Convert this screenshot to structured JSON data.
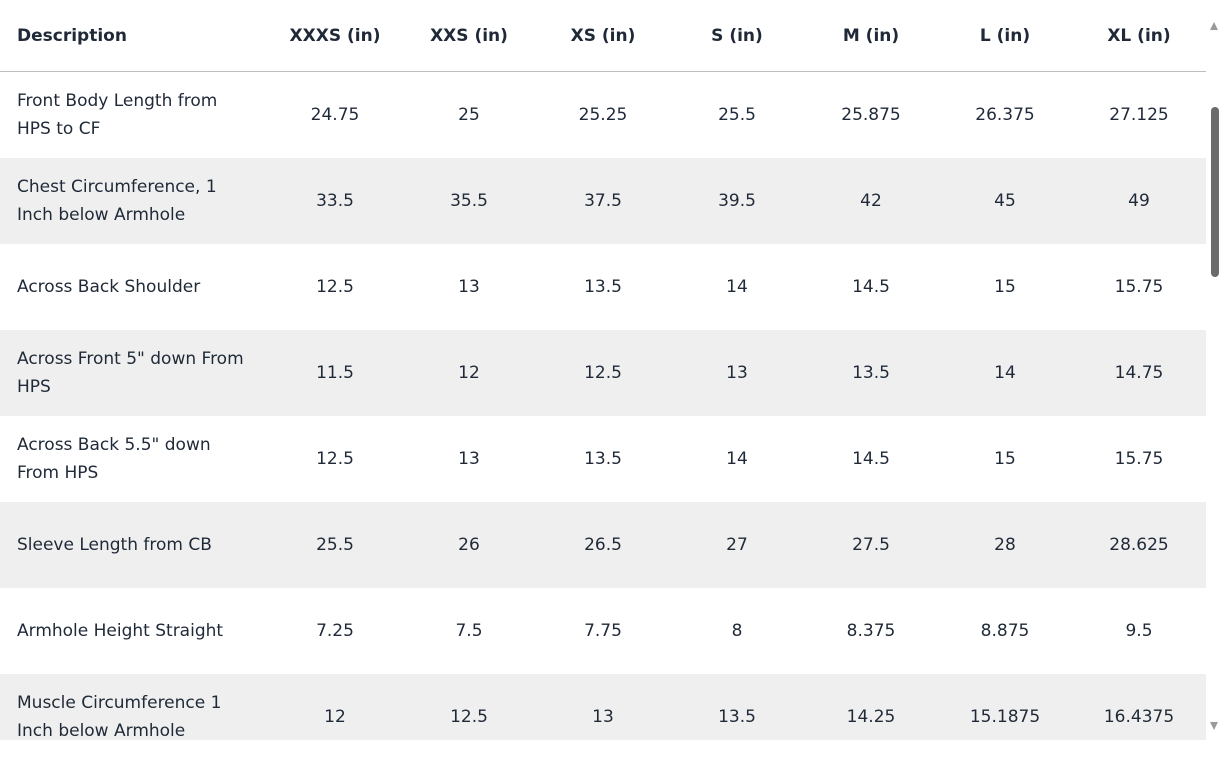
{
  "table": {
    "columns": [
      "Description",
      "XXXS (in)",
      "XXS (in)",
      "XS (in)",
      "S (in)",
      "M (in)",
      "L (in)",
      "XL (in)"
    ],
    "rows": [
      [
        "Front Body Length from HPS to CF",
        "24.75",
        "25",
        "25.25",
        "25.5",
        "25.875",
        "26.375",
        "27.125"
      ],
      [
        "Chest Circumference, 1 Inch below Armhole",
        "33.5",
        "35.5",
        "37.5",
        "39.5",
        "42",
        "45",
        "49"
      ],
      [
        "Across Back Shoulder",
        "12.5",
        "13",
        "13.5",
        "14",
        "14.5",
        "15",
        "15.75"
      ],
      [
        "Across Front 5\" down From HPS",
        "11.5",
        "12",
        "12.5",
        "13",
        "13.5",
        "14",
        "14.75"
      ],
      [
        "Across Back 5.5\" down From HPS",
        "12.5",
        "13",
        "13.5",
        "14",
        "14.5",
        "15",
        "15.75"
      ],
      [
        "Sleeve Length from CB",
        "25.5",
        "26",
        "26.5",
        "27",
        "27.5",
        "28",
        "28.625"
      ],
      [
        "Armhole Height Straight",
        "7.25",
        "7.5",
        "7.75",
        "8",
        "8.375",
        "8.875",
        "9.5"
      ],
      [
        "Muscle Circumference 1 Inch below Armhole",
        "12",
        "12.5",
        "13",
        "13.5",
        "14.25",
        "15.1875",
        "16.4375"
      ]
    ]
  }
}
